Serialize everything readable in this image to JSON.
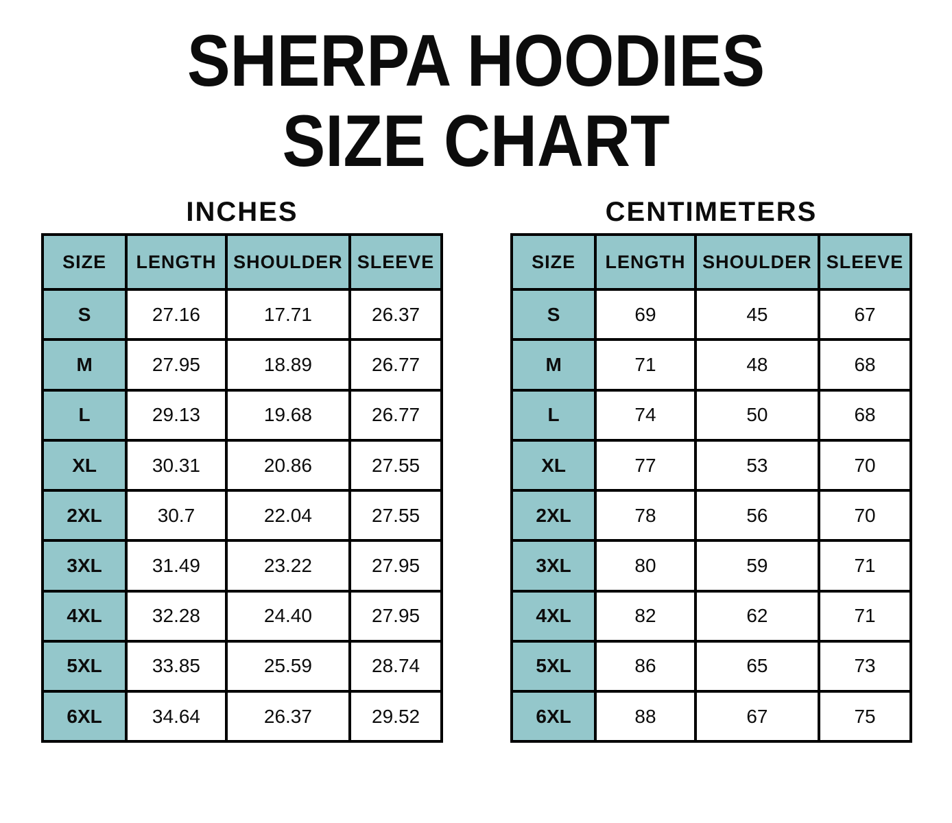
{
  "title": {
    "line1": "SHERPA HOODIES",
    "line2": "SIZE CHART"
  },
  "colors": {
    "header_bg": "#94C7CB",
    "border": "#000000",
    "text": "#0c0c0c",
    "background": "#ffffff"
  },
  "chart_data": [
    {
      "type": "table",
      "unit_label": "INCHES",
      "columns": [
        "SIZE",
        "LENGTH",
        "SHOULDER",
        "SLEEVE"
      ],
      "rows": [
        [
          "S",
          "27.16",
          "17.71",
          "26.37"
        ],
        [
          "M",
          "27.95",
          "18.89",
          "26.77"
        ],
        [
          "L",
          "29.13",
          "19.68",
          "26.77"
        ],
        [
          "XL",
          "30.31",
          "20.86",
          "27.55"
        ],
        [
          "2XL",
          "30.7",
          "22.04",
          "27.55"
        ],
        [
          "3XL",
          "31.49",
          "23.22",
          "27.95"
        ],
        [
          "4XL",
          "32.28",
          "24.40",
          "27.95"
        ],
        [
          "5XL",
          "33.85",
          "25.59",
          "28.74"
        ],
        [
          "6XL",
          "34.64",
          "26.37",
          "29.52"
        ]
      ]
    },
    {
      "type": "table",
      "unit_label": "CENTIMETERS",
      "columns": [
        "SIZE",
        "LENGTH",
        "SHOULDER",
        "SLEEVE"
      ],
      "rows": [
        [
          "S",
          "69",
          "45",
          "67"
        ],
        [
          "M",
          "71",
          "48",
          "68"
        ],
        [
          "L",
          "74",
          "50",
          "68"
        ],
        [
          "XL",
          "77",
          "53",
          "70"
        ],
        [
          "2XL",
          "78",
          "56",
          "70"
        ],
        [
          "3XL",
          "80",
          "59",
          "71"
        ],
        [
          "4XL",
          "82",
          "62",
          "71"
        ],
        [
          "5XL",
          "86",
          "65",
          "73"
        ],
        [
          "6XL",
          "88",
          "67",
          "75"
        ]
      ]
    }
  ]
}
